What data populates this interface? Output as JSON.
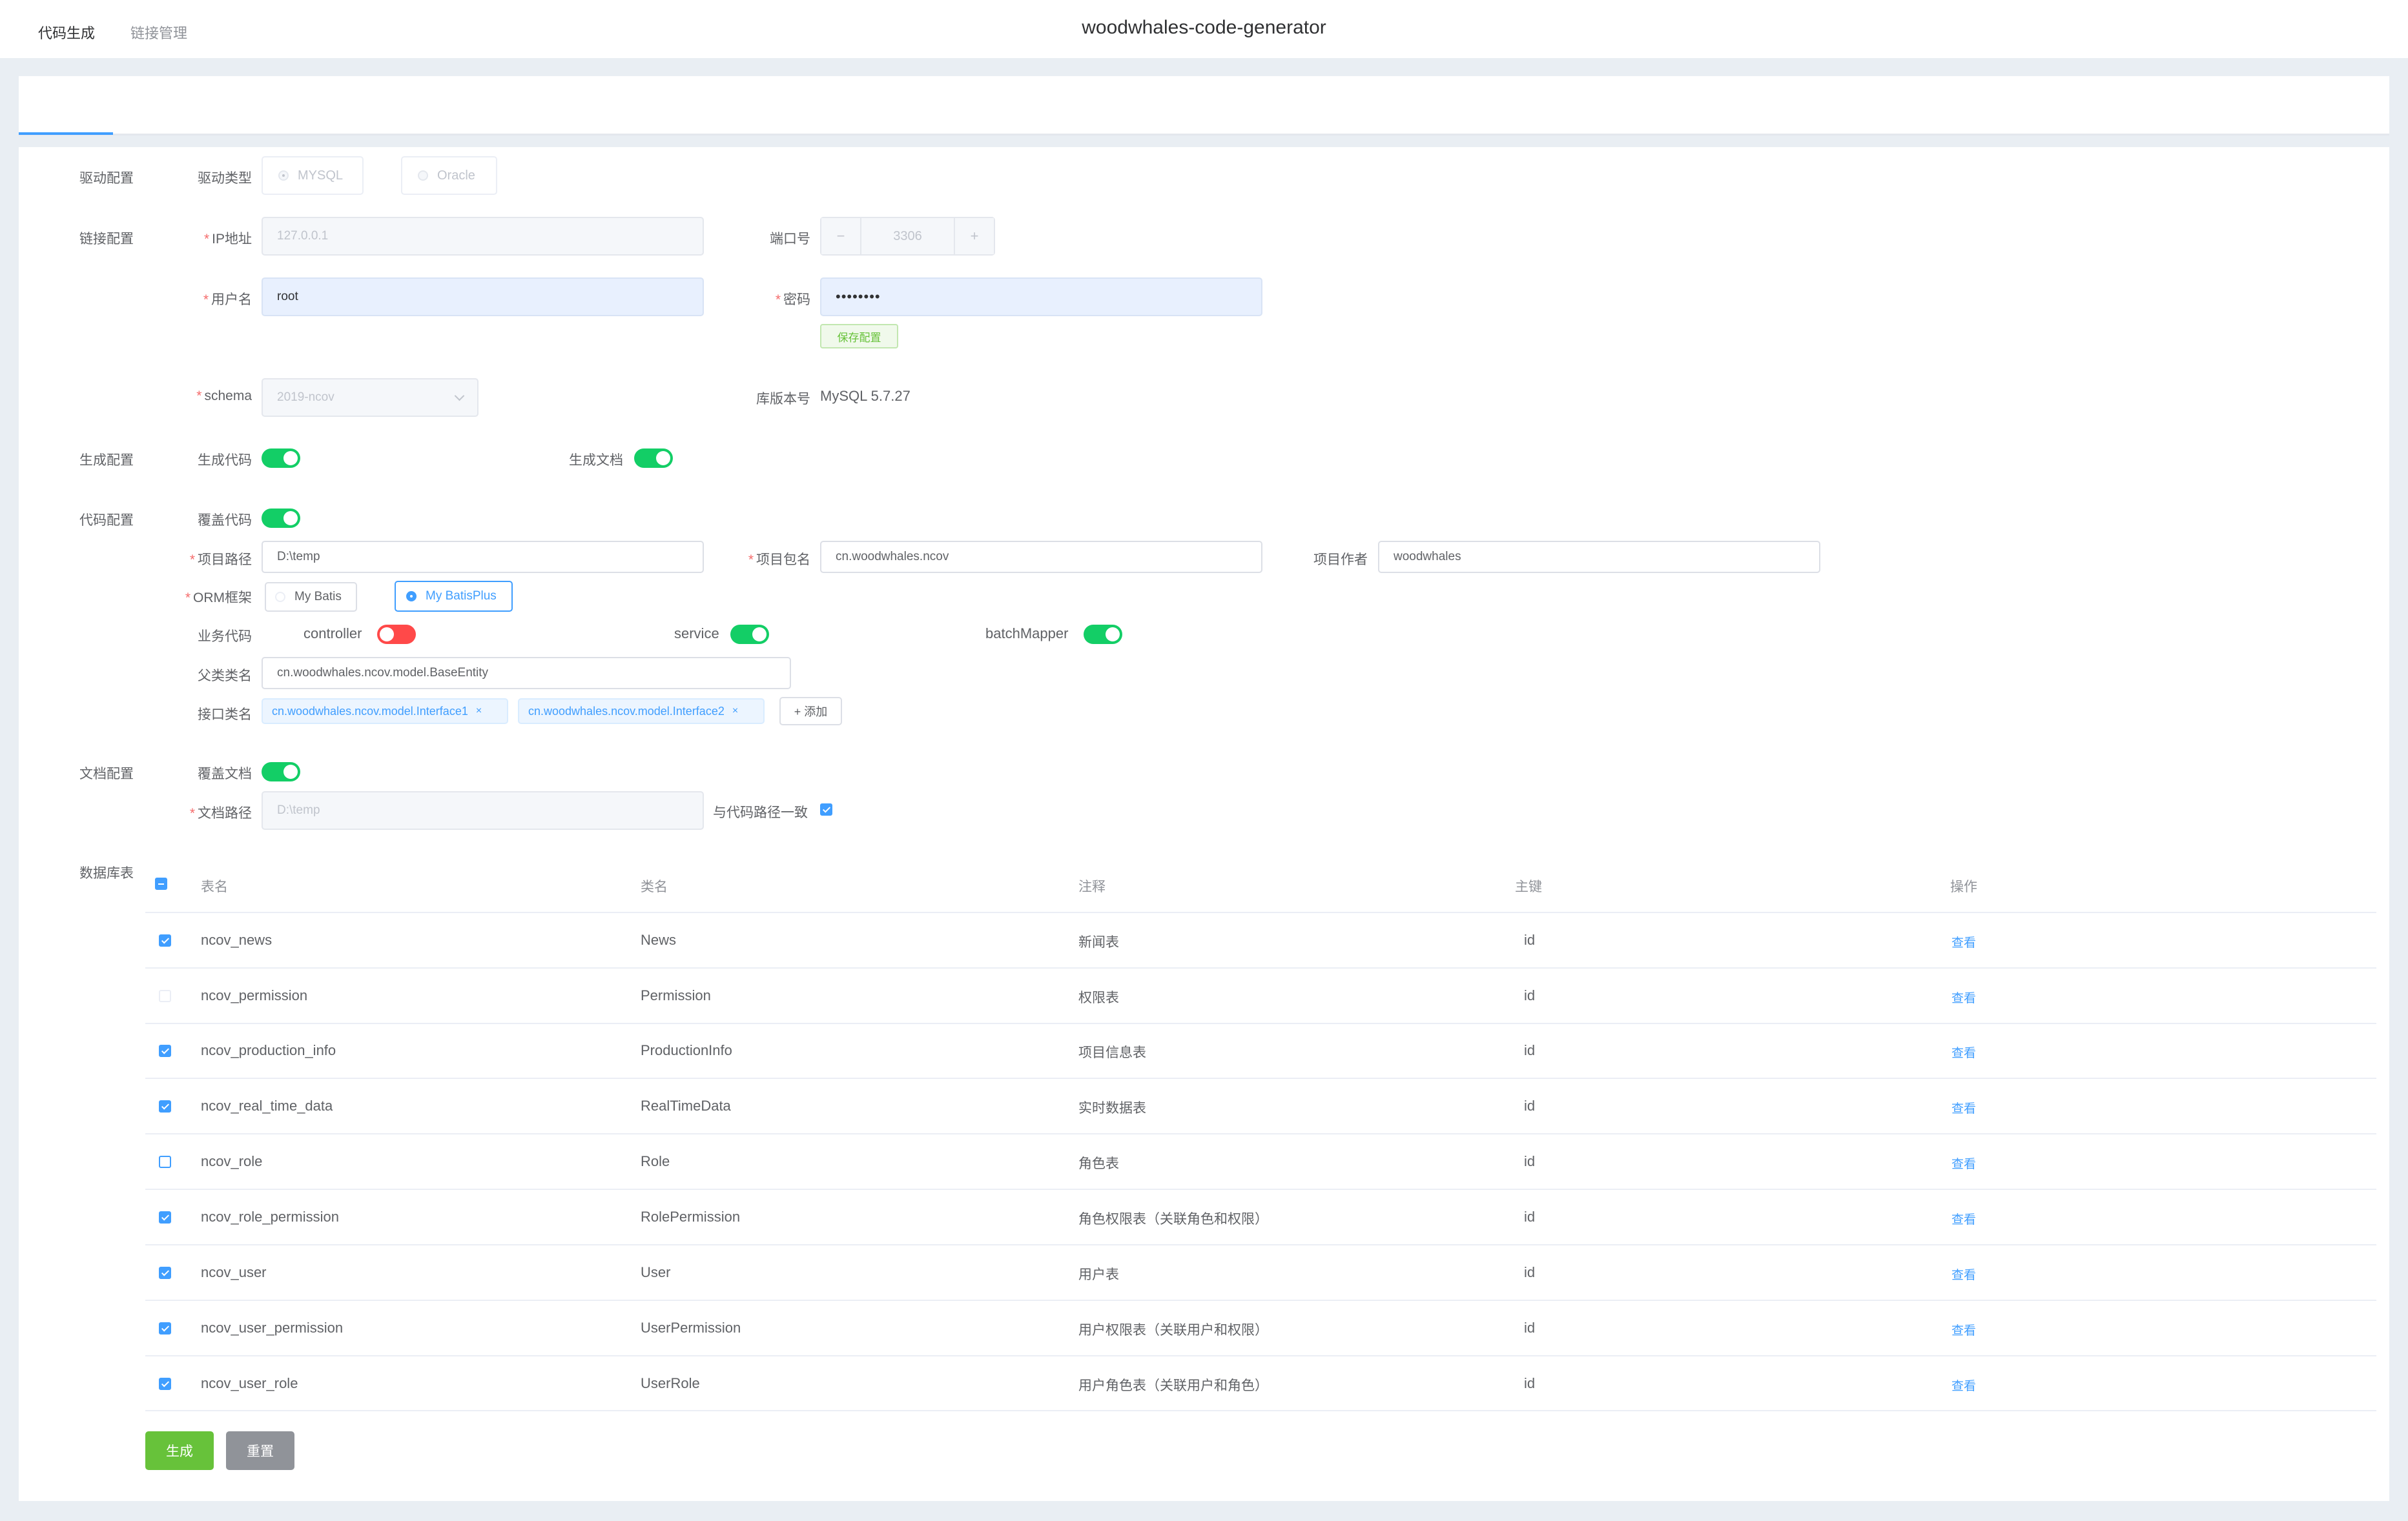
{
  "app": {
    "title": "woodwhales-code-generator"
  },
  "tabs": [
    {
      "label": "代码生成",
      "active": true
    },
    {
      "label": "链接管理",
      "active": false
    }
  ],
  "sections": {
    "driver": "驱动配置",
    "connection": "链接配置",
    "generate": "生成配置",
    "code": "代码配置",
    "doc": "文档配置",
    "tables": "数据库表"
  },
  "driver": {
    "label": "驱动类型",
    "options": [
      {
        "label": "MYSQL",
        "selected": true
      },
      {
        "label": "Oracle",
        "selected": false
      }
    ]
  },
  "connection": {
    "ip_label": "IP地址",
    "ip_value": "127.0.0.1",
    "port_label": "端口号",
    "port_value": "3306",
    "port_minus": "−",
    "port_plus": "+",
    "user_label": "用户名",
    "user_value": "root",
    "password_label": "密码",
    "password_value": "••••••••",
    "save_label": "保存配置",
    "schema_label": "schema",
    "schema_value": "2019-ncov",
    "version_label": "库版本号",
    "version_value": "MySQL 5.7.27"
  },
  "generate": {
    "code_label": "生成代码",
    "code_on": true,
    "doc_label": "生成文档",
    "doc_on": true
  },
  "code": {
    "override_label": "覆盖代码",
    "override_on": true,
    "path_label": "项目路径",
    "path_value": "D:\\temp",
    "package_label": "项目包名",
    "package_value": "cn.woodwhales.ncov",
    "author_label": "项目作者",
    "author_value": "woodwhales",
    "orm_label": "ORM框架",
    "orm_options": [
      {
        "label": "My Batis",
        "selected": false
      },
      {
        "label": "My BatisPlus",
        "selected": true
      }
    ],
    "biz_label": "业务代码",
    "biz_switches": [
      {
        "label": "controller",
        "on": false
      },
      {
        "label": "service",
        "on": true
      },
      {
        "label": "batchMapper",
        "on": true
      }
    ],
    "parent_label": "父类类名",
    "parent_value": "cn.woodwhales.ncov.model.BaseEntity",
    "interface_label": "接口类名",
    "interfaces": [
      "cn.woodwhales.ncov.model.Interface1",
      "cn.woodwhales.ncov.model.Interface2"
    ],
    "tag_close": "×",
    "add_label": "+ 添加"
  },
  "doc": {
    "override_label": "覆盖文档",
    "override_on": true,
    "path_label": "文档路径",
    "path_value": "D:\\temp",
    "same_path_label": "与代码路径一致",
    "same_path_checked": true
  },
  "table": {
    "columns": [
      "表名",
      "类名",
      "注释",
      "主键",
      "操作"
    ],
    "rows": [
      {
        "checked": true,
        "table": "ncov_news",
        "class": "News",
        "comment": "新闻表",
        "pk": "id",
        "action": "查看"
      },
      {
        "checked": false,
        "table": "ncov_permission",
        "class": "Permission",
        "comment": "权限表",
        "pk": "id",
        "action": "查看"
      },
      {
        "checked": true,
        "table": "ncov_production_info",
        "class": "ProductionInfo",
        "comment": "项目信息表",
        "pk": "id",
        "action": "查看"
      },
      {
        "checked": true,
        "table": "ncov_real_time_data",
        "class": "RealTimeData",
        "comment": "实时数据表",
        "pk": "id",
        "action": "查看"
      },
      {
        "checked": false,
        "table": "ncov_role",
        "class": "Role",
        "comment": "角色表",
        "pk": "id",
        "action": "查看"
      },
      {
        "checked": true,
        "table": "ncov_role_permission",
        "class": "RolePermission",
        "comment": "角色权限表（关联角色和权限）",
        "pk": "id",
        "action": "查看"
      },
      {
        "checked": true,
        "table": "ncov_user",
        "class": "User",
        "comment": "用户表",
        "pk": "id",
        "action": "查看"
      },
      {
        "checked": true,
        "table": "ncov_user_permission",
        "class": "UserPermission",
        "comment": "用户权限表（关联用户和权限）",
        "pk": "id",
        "action": "查看"
      },
      {
        "checked": true,
        "table": "ncov_user_role",
        "class": "UserRole",
        "comment": "用户角色表（关联用户和角色）",
        "pk": "id",
        "action": "查看"
      }
    ]
  },
  "actions": {
    "generate_label": "生成",
    "reset_label": "重置"
  },
  "colors": {
    "primary": "#409eff",
    "success": "#67c23a",
    "switch_on": "#13ce66",
    "switch_off": "#ff4949",
    "info": "#909399"
  }
}
